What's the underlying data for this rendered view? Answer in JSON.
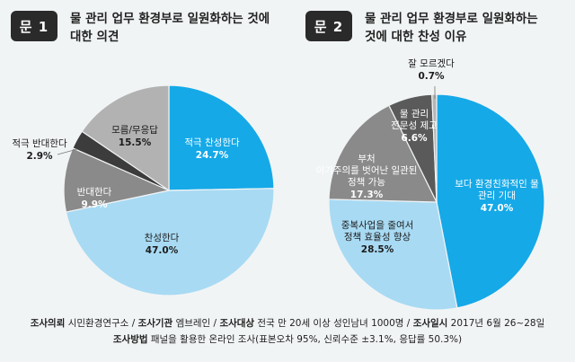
{
  "questions": [
    {
      "badge": "문 1",
      "title_line1": "물 관리 업무 환경부로 일원화하는 것에",
      "title_line2": "대한 의견"
    },
    {
      "badge": "문 2",
      "title_line1": "물 관리 업무 환경부로 일원화하는",
      "title_line2": "것에 대한 찬성 이유"
    }
  ],
  "chart_data": [
    {
      "type": "pie",
      "title": "물 관리 업무 환경부로 일원화하는 것에 대한 의견",
      "slices": [
        {
          "label": "적극 찬성한다",
          "value": 24.7,
          "display": "24.7%",
          "color": "#15a9e8"
        },
        {
          "label": "찬성한다",
          "value": 47.0,
          "display": "47.0%",
          "color": "#a8daf3"
        },
        {
          "label": "반대한다",
          "value": 9.9,
          "display": "9.9%",
          "color": "#8a8a8a"
        },
        {
          "label": "적극 반대한다",
          "value": 2.9,
          "display": "2.9%",
          "color": "#3c3c3c"
        },
        {
          "label": "모름/무응답",
          "value": 15.5,
          "display": "15.5%",
          "color": "#b2b2b2"
        }
      ]
    },
    {
      "type": "pie",
      "title": "물 관리 업무 환경부로 일원화하는 것에 대한 찬성 이유",
      "slices": [
        {
          "label": "보다 환경친화적인 물 관리 기대",
          "value": 47.0,
          "display": "47.0%",
          "color": "#15a9e8"
        },
        {
          "label": "중복사업을 줄여서 정책 효율성 향상",
          "value": 28.5,
          "display": "28.5%",
          "color": "#a8daf3"
        },
        {
          "label": "부처 이기주의를 벗어난 일관된 정책 가능",
          "value": 17.3,
          "display": "17.3%",
          "color": "#8a8a8a"
        },
        {
          "label": "물 관리 전문성 제고",
          "value": 6.6,
          "display": "6.6%",
          "color": "#5a5a5a"
        },
        {
          "label": "잘 모르겠다",
          "value": 0.7,
          "display": "0.7%",
          "color": "#b5b5b5"
        }
      ]
    }
  ],
  "footer": {
    "line1": [
      {
        "key": "조사의뢰",
        "value": "시민환경연구소"
      },
      {
        "key": "조사기관",
        "value": "엠브레인"
      },
      {
        "key": "조사대상",
        "value": "전국 만 20세 이상 성인남녀 1000명"
      },
      {
        "key": "조사일시",
        "value": "2017년 6월 26~28일"
      }
    ],
    "line2_key": "조사방법",
    "line2_value": "패널을 활용한 온라인 조사(표본오차 95%, 신뢰수준 ±3.1%, 응답률 50.3%)"
  }
}
